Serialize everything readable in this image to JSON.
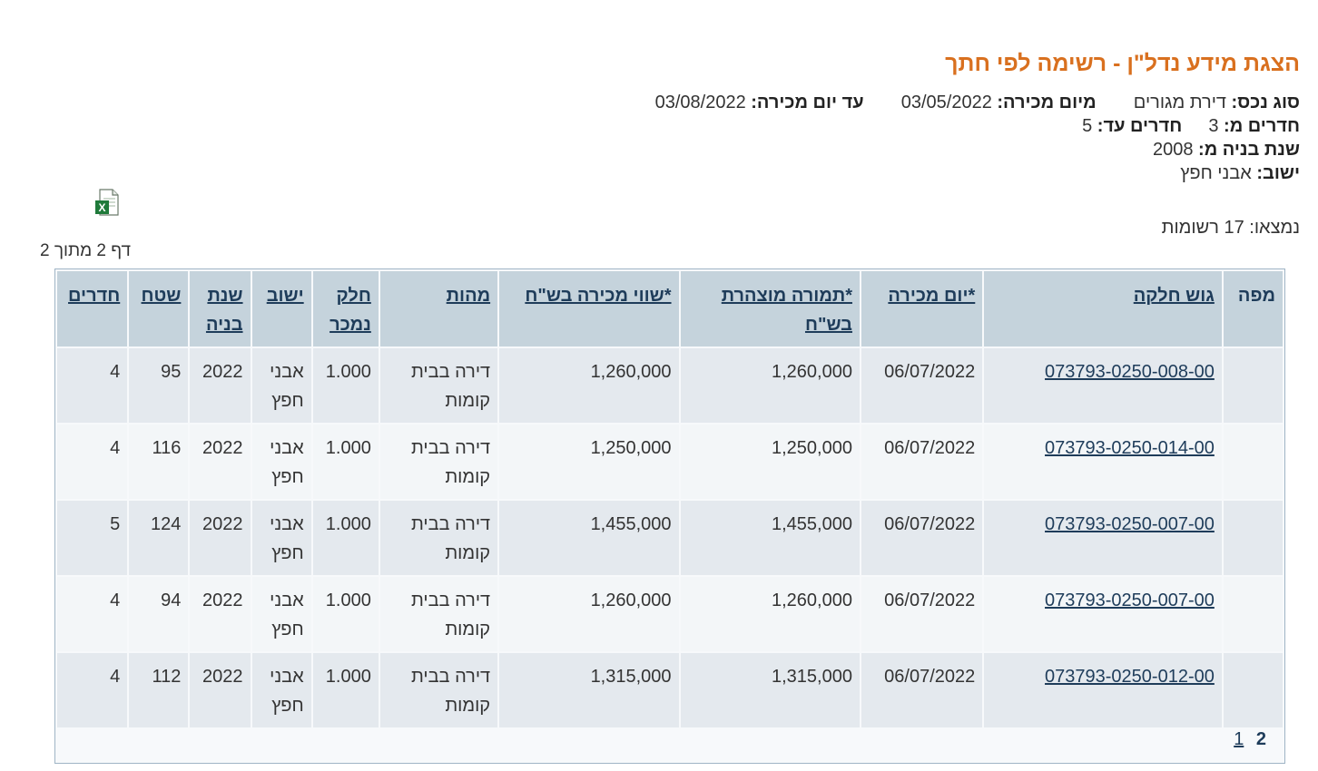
{
  "title": "הצגת מידע נדל\"ן - רשימה לפי חתך",
  "criteria": {
    "asset_type_label": "סוג נכס:",
    "asset_type_value": "דירת מגורים",
    "from_date_label": "מיום מכירה:",
    "from_date_value": "03/05/2022",
    "to_date_label": "עד יום מכירה:",
    "to_date_value": "03/08/2022",
    "rooms_from_label": "חדרים מ:",
    "rooms_from_value": "3",
    "rooms_to_label": "חדרים עד:",
    "rooms_to_value": "5",
    "build_year_label": "שנת בניה מ:",
    "build_year_value": "2008",
    "settlement_label": "ישוב:",
    "settlement_value": "אבני חפץ"
  },
  "export": {
    "icon": "excel-icon"
  },
  "found": {
    "label": "נמצאו:",
    "count": "17",
    "unit": "רשומות"
  },
  "page_indicator": "דף 2 מתוך 2",
  "columns": [
    {
      "key": "map",
      "label": "מפה",
      "link": false
    },
    {
      "key": "parcel",
      "label": "גוש חלקה",
      "link": true
    },
    {
      "key": "sale_date",
      "label": "*יום מכירה",
      "link": true
    },
    {
      "key": "declared_price",
      "label": "*תמורה מוצהרת בש\"ח",
      "link": true
    },
    {
      "key": "sale_value",
      "label": "*שווי מכירה בש\"ח",
      "link": true
    },
    {
      "key": "nature",
      "label": "מהות",
      "link": true
    },
    {
      "key": "portion",
      "label": "חלק נמכר",
      "link": true
    },
    {
      "key": "settlement",
      "label": "ישוב",
      "link": true
    },
    {
      "key": "build_year",
      "label": "שנת בניה",
      "link": true
    },
    {
      "key": "area",
      "label": "שטח",
      "link": true
    },
    {
      "key": "rooms",
      "label": "חדרים",
      "link": true
    }
  ],
  "rows": [
    {
      "map": "",
      "parcel": "073793-0250-008-00",
      "sale_date": "06/07/2022",
      "declared_price": "1,260,000",
      "sale_value": "1,260,000",
      "nature": "דירה בבית קומות",
      "portion": "1.000",
      "settlement": "אבני חפץ",
      "build_year": "2022",
      "area": "95",
      "rooms": "4"
    },
    {
      "map": "",
      "parcel": "073793-0250-014-00",
      "sale_date": "06/07/2022",
      "declared_price": "1,250,000",
      "sale_value": "1,250,000",
      "nature": "דירה בבית קומות",
      "portion": "1.000",
      "settlement": "אבני חפץ",
      "build_year": "2022",
      "area": "116",
      "rooms": "4"
    },
    {
      "map": "",
      "parcel": "073793-0250-007-00",
      "sale_date": "06/07/2022",
      "declared_price": "1,455,000",
      "sale_value": "1,455,000",
      "nature": "דירה בבית קומות",
      "portion": "1.000",
      "settlement": "אבני חפץ",
      "build_year": "2022",
      "area": "124",
      "rooms": "5"
    },
    {
      "map": "",
      "parcel": "073793-0250-007-00",
      "sale_date": "06/07/2022",
      "declared_price": "1,260,000",
      "sale_value": "1,260,000",
      "nature": "דירה בבית קומות",
      "portion": "1.000",
      "settlement": "אבני חפץ",
      "build_year": "2022",
      "area": "94",
      "rooms": "4"
    },
    {
      "map": "",
      "parcel": "073793-0250-012-00",
      "sale_date": "06/07/2022",
      "declared_price": "1,315,000",
      "sale_value": "1,315,000",
      "nature": "דירה בבית קומות",
      "portion": "1.000",
      "settlement": "אבני חפץ",
      "build_year": "2022",
      "area": "112",
      "rooms": "4"
    }
  ],
  "pager": {
    "current": "2",
    "pages": [
      "1"
    ]
  },
  "colors": {
    "title": "#d9701f",
    "header_bg": "#c5d3dc",
    "row_odd": "#e4e9ee",
    "row_even": "#f3f6f8",
    "link": "#1e3c5a"
  }
}
